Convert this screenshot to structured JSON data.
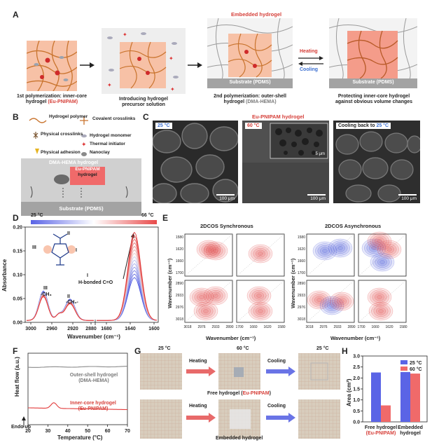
{
  "panels": {
    "A": {
      "label": "A",
      "top_label": "Embedded hydrogel",
      "step1_caption_a": "1st polymerization: inner-core",
      "step1_caption_b": "hydrogel",
      "step1_caption_c": "(Eu-PNIPAM)",
      "step2_caption_a": "Introducing hydrogel",
      "step2_caption_b": "precursor solution",
      "step3_caption_a": "2nd polymerization: outer-shell",
      "step3_caption_b": "hydrogel",
      "step3_caption_c": "(DMA-HEMA)",
      "step4_caption_a": "Protecting inner-core hydrogel",
      "step4_caption_b": "against obvious volume changes",
      "substrate": "Substrate (PDMS)",
      "heating": "Heating",
      "cooling": "Cooling"
    },
    "B": {
      "label": "B",
      "legend": [
        "Hydrogel polymer",
        "Covalent crosslinks",
        "Physical crosslinks",
        "Hydrogel monomer",
        "Thermal initiator",
        "Physical adhesion",
        "Nanoclay"
      ],
      "shell": "DMA-HEMA hydrogel",
      "core_a": "Eu-PNIPAM",
      "core_b": "hydrogel",
      "substrate": "Substrate (PDMS)"
    },
    "C": {
      "label": "C",
      "title": "Eu-PNIPAM hydrogel",
      "tag1": "25 °C",
      "tag2": "60 °C",
      "tag3a": "Cooling back to ",
      "tag3b": "25 °C",
      "scale": "100 μm",
      "inset_scale": "5 μm"
    },
    "D": {
      "label": "D",
      "temp_low": "25 °C",
      "temp_high": "66 °C",
      "ylabel": "Absorbance",
      "xlabel": "Wavenumber (cm⁻¹)",
      "roman_I": "I",
      "roman_II": "II",
      "roman_III": "III",
      "peak_I": "H-bonded C=O",
      "peak_II": "-CH₂-",
      "peak_III": "-CH₃"
    },
    "E": {
      "label": "E",
      "title_sync": "2DCOS Synchronous",
      "title_async": "2DCOS Asynchronous",
      "ylabel": "Wavenumber (cm⁻¹)",
      "xlabel": "Wavenumber (cm⁻¹)"
    },
    "F": {
      "label": "F",
      "ylabel": "Heat flow (a.u.)",
      "xlabel": "Temperature (°C)",
      "endo": "Endo up",
      "outer_a": "Outer-shell hydrogel",
      "outer_b": "(DMA-HEMA)",
      "inner_a": "Inner-core hydrogel",
      "inner_b": "(Eu-PNIPAM)"
    },
    "G": {
      "label": "G",
      "t1": "25 °C",
      "t2": "60 °C",
      "t3": "25 °C",
      "heating": "Heating",
      "cooling": "Cooling",
      "free_a": "Free hydrogel (",
      "free_b": "Eu-PNIPAM",
      "free_c": ")",
      "embedded": "Embedded hydrogel"
    },
    "H": {
      "label": "H",
      "ylabel": "Area (cm²)"
    }
  },
  "chart_data": [
    {
      "type": "line",
      "panel": "D",
      "xlabel": "Wavenumber (cm⁻¹)",
      "ylabel": "Absorbance",
      "x_ticks_left": [
        "3000",
        "2960",
        "2920",
        "2880"
      ],
      "x_ticks_right": [
        "1680",
        "1640",
        "1600"
      ],
      "y_ticks": [
        "0.00",
        "0.05",
        "0.10",
        "0.15",
        "0.20"
      ],
      "ylim": [
        0,
        0.2
      ]
    },
    {
      "type": "heatmap",
      "panel": "E",
      "x_ticks_left": [
        "3018",
        "2976",
        "2933",
        "2890"
      ],
      "x_ticks_right": [
        "1700",
        "1660",
        "1620",
        "1580"
      ],
      "y_ticks_top": [
        "1580",
        "1620",
        "1660",
        "1700"
      ],
      "y_ticks_bottom": [
        "2890",
        "2933",
        "2976",
        "3018"
      ]
    },
    {
      "type": "line",
      "panel": "F",
      "xlabel": "Temperature (°C)",
      "x_ticks": [
        "20",
        "30",
        "40",
        "50",
        "60",
        "70"
      ],
      "xlim": [
        20,
        70
      ]
    },
    {
      "type": "bar",
      "panel": "H",
      "categories": [
        "Free hydrogel (Eu-PNIPAM)",
        "Embedded hydrogel"
      ],
      "category_lines": [
        [
          "Free hydrogel",
          "(Eu-PNIPAM)"
        ],
        [
          "Embedded",
          "hydrogel"
        ]
      ],
      "series": [
        {
          "name": "25 °C",
          "color": "#5a64e6",
          "values": [
            2.25,
            2.27
          ]
        },
        {
          "name": "60 °C",
          "color": "#f06a6a",
          "values": [
            0.75,
            2.2
          ]
        }
      ],
      "ylabel": "Area (cm²)",
      "ylim": [
        0,
        3.0
      ],
      "y_ticks": [
        "0.0",
        "0.5",
        "1.0",
        "1.5",
        "2.0",
        "2.5",
        "3.0"
      ]
    }
  ]
}
